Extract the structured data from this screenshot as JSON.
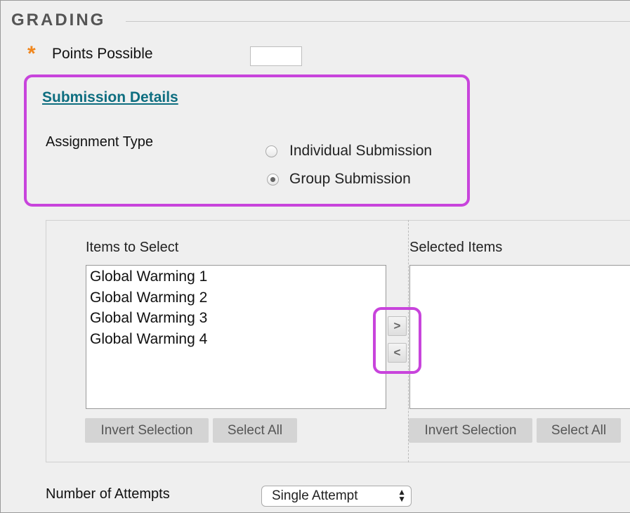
{
  "section": {
    "title": "GRADING"
  },
  "points_possible": {
    "label": "Points Possible",
    "value": "",
    "required_icon": "asterisk-icon",
    "required_color": "#f0861c"
  },
  "submission_details": {
    "link": "Submission Details",
    "assignment_type_label": "Assignment Type",
    "options": [
      {
        "label": "Individual Submission",
        "selected": false
      },
      {
        "label": "Group Submission",
        "selected": true
      }
    ]
  },
  "group_picker": {
    "items_to_select_label": "Items to Select",
    "selected_items_label": "Selected Items",
    "items_to_select": [
      "Global Warming 1",
      "Global Warming 2",
      "Global Warming 3",
      "Global Warming 4"
    ],
    "selected_items": [],
    "invert_selection": "Invert Selection",
    "select_all": "Select All",
    "add_arrow": ">",
    "remove_arrow": "<"
  },
  "attempts": {
    "label": "Number of Attempts",
    "value": "Single Attempt"
  },
  "highlight_color": "#c844dc"
}
